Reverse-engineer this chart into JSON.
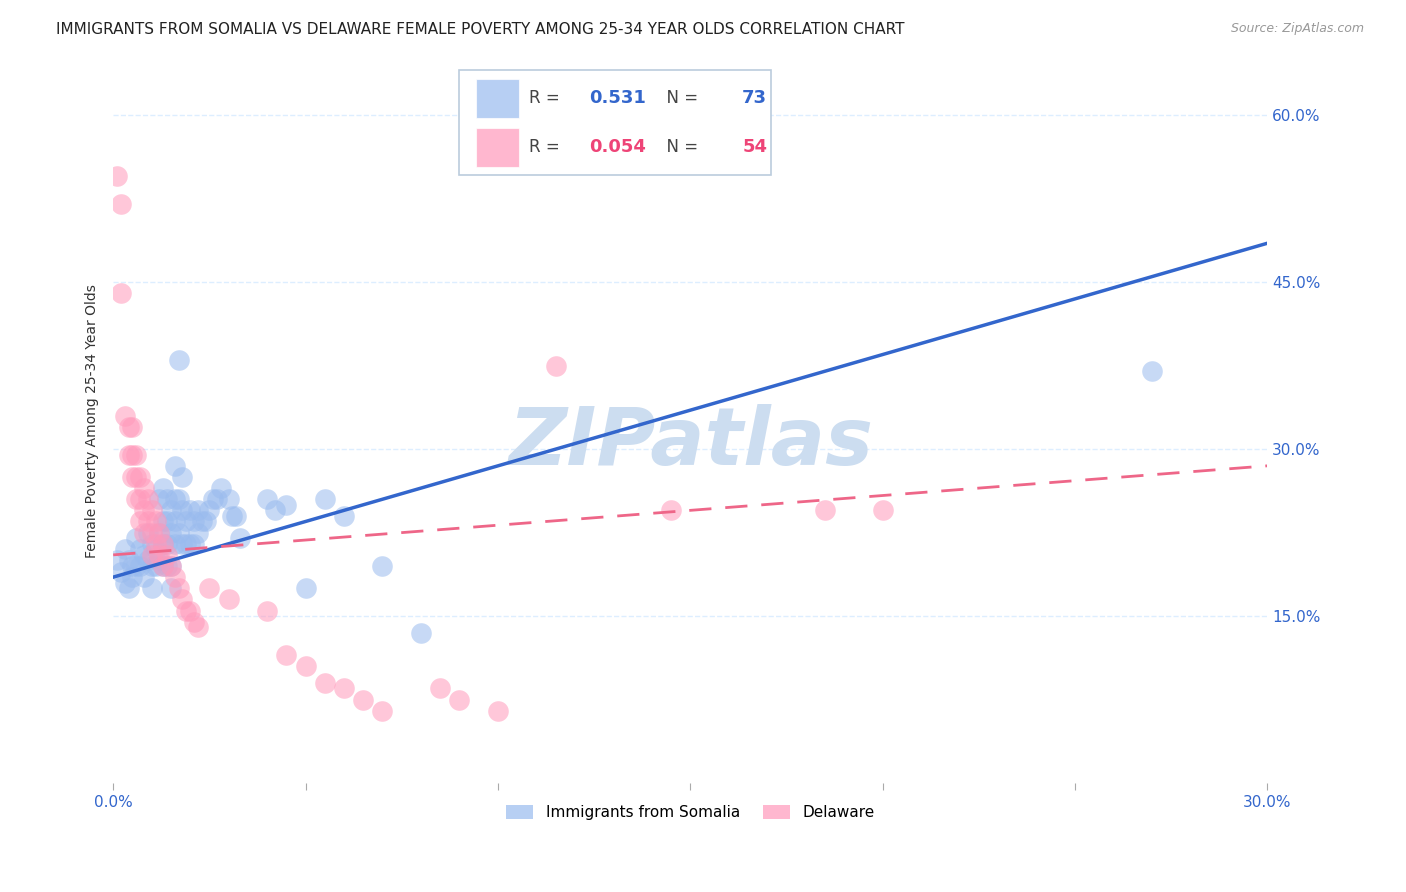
{
  "title": "IMMIGRANTS FROM SOMALIA VS DELAWARE FEMALE POVERTY AMONG 25-34 YEAR OLDS CORRELATION CHART",
  "source": "Source: ZipAtlas.com",
  "ylabel": "Female Poverty Among 25-34 Year Olds",
  "xlim": [
    0.0,
    0.3
  ],
  "ylim": [
    0.0,
    0.65
  ],
  "x_ticks": [
    0.0,
    0.05,
    0.1,
    0.15,
    0.2,
    0.25,
    0.3
  ],
  "y_ticks_right": [
    0.15,
    0.3,
    0.45,
    0.6
  ],
  "y_tick_labels_right": [
    "15.0%",
    "30.0%",
    "45.0%",
    "60.0%"
  ],
  "watermark": "ZIPatlas",
  "blue_color": "#99BBEE",
  "pink_color": "#FF99BB",
  "line_blue_color": "#3366CC",
  "line_pink_color": "#EE6688",
  "blue_scatter": [
    [
      0.001,
      0.2
    ],
    [
      0.002,
      0.19
    ],
    [
      0.003,
      0.18
    ],
    [
      0.003,
      0.21
    ],
    [
      0.004,
      0.2
    ],
    [
      0.004,
      0.175
    ],
    [
      0.005,
      0.195
    ],
    [
      0.005,
      0.185
    ],
    [
      0.006,
      0.22
    ],
    [
      0.006,
      0.195
    ],
    [
      0.007,
      0.21
    ],
    [
      0.007,
      0.195
    ],
    [
      0.008,
      0.205
    ],
    [
      0.008,
      0.185
    ],
    [
      0.009,
      0.225
    ],
    [
      0.009,
      0.2
    ],
    [
      0.01,
      0.215
    ],
    [
      0.01,
      0.195
    ],
    [
      0.01,
      0.175
    ],
    [
      0.011,
      0.21
    ],
    [
      0.011,
      0.195
    ],
    [
      0.012,
      0.255
    ],
    [
      0.012,
      0.225
    ],
    [
      0.012,
      0.2
    ],
    [
      0.013,
      0.265
    ],
    [
      0.013,
      0.235
    ],
    [
      0.013,
      0.215
    ],
    [
      0.013,
      0.195
    ],
    [
      0.014,
      0.255
    ],
    [
      0.014,
      0.235
    ],
    [
      0.014,
      0.215
    ],
    [
      0.014,
      0.195
    ],
    [
      0.015,
      0.245
    ],
    [
      0.015,
      0.225
    ],
    [
      0.015,
      0.195
    ],
    [
      0.015,
      0.175
    ],
    [
      0.016,
      0.285
    ],
    [
      0.016,
      0.255
    ],
    [
      0.016,
      0.235
    ],
    [
      0.016,
      0.215
    ],
    [
      0.017,
      0.38
    ],
    [
      0.017,
      0.255
    ],
    [
      0.017,
      0.225
    ],
    [
      0.018,
      0.275
    ],
    [
      0.018,
      0.245
    ],
    [
      0.018,
      0.215
    ],
    [
      0.019,
      0.235
    ],
    [
      0.019,
      0.215
    ],
    [
      0.02,
      0.245
    ],
    [
      0.02,
      0.215
    ],
    [
      0.021,
      0.235
    ],
    [
      0.021,
      0.215
    ],
    [
      0.022,
      0.245
    ],
    [
      0.022,
      0.225
    ],
    [
      0.023,
      0.235
    ],
    [
      0.024,
      0.235
    ],
    [
      0.025,
      0.245
    ],
    [
      0.026,
      0.255
    ],
    [
      0.027,
      0.255
    ],
    [
      0.028,
      0.265
    ],
    [
      0.03,
      0.255
    ],
    [
      0.031,
      0.24
    ],
    [
      0.032,
      0.24
    ],
    [
      0.033,
      0.22
    ],
    [
      0.04,
      0.255
    ],
    [
      0.042,
      0.245
    ],
    [
      0.045,
      0.25
    ],
    [
      0.05,
      0.175
    ],
    [
      0.055,
      0.255
    ],
    [
      0.06,
      0.24
    ],
    [
      0.07,
      0.195
    ],
    [
      0.08,
      0.135
    ],
    [
      0.27,
      0.37
    ]
  ],
  "pink_scatter": [
    [
      0.001,
      0.545
    ],
    [
      0.002,
      0.52
    ],
    [
      0.002,
      0.44
    ],
    [
      0.003,
      0.33
    ],
    [
      0.004,
      0.32
    ],
    [
      0.004,
      0.295
    ],
    [
      0.005,
      0.32
    ],
    [
      0.005,
      0.295
    ],
    [
      0.005,
      0.275
    ],
    [
      0.006,
      0.295
    ],
    [
      0.006,
      0.275
    ],
    [
      0.006,
      0.255
    ],
    [
      0.007,
      0.275
    ],
    [
      0.007,
      0.255
    ],
    [
      0.007,
      0.235
    ],
    [
      0.008,
      0.265
    ],
    [
      0.008,
      0.245
    ],
    [
      0.008,
      0.225
    ],
    [
      0.009,
      0.255
    ],
    [
      0.009,
      0.235
    ],
    [
      0.01,
      0.245
    ],
    [
      0.01,
      0.225
    ],
    [
      0.01,
      0.205
    ],
    [
      0.011,
      0.235
    ],
    [
      0.011,
      0.215
    ],
    [
      0.012,
      0.225
    ],
    [
      0.012,
      0.205
    ],
    [
      0.013,
      0.215
    ],
    [
      0.013,
      0.195
    ],
    [
      0.014,
      0.205
    ],
    [
      0.015,
      0.195
    ],
    [
      0.016,
      0.185
    ],
    [
      0.017,
      0.175
    ],
    [
      0.018,
      0.165
    ],
    [
      0.019,
      0.155
    ],
    [
      0.02,
      0.155
    ],
    [
      0.021,
      0.145
    ],
    [
      0.022,
      0.14
    ],
    [
      0.025,
      0.175
    ],
    [
      0.03,
      0.165
    ],
    [
      0.04,
      0.155
    ],
    [
      0.045,
      0.115
    ],
    [
      0.05,
      0.105
    ],
    [
      0.055,
      0.09
    ],
    [
      0.06,
      0.085
    ],
    [
      0.065,
      0.075
    ],
    [
      0.07,
      0.065
    ],
    [
      0.085,
      0.085
    ],
    [
      0.09,
      0.075
    ],
    [
      0.1,
      0.065
    ],
    [
      0.115,
      0.375
    ],
    [
      0.145,
      0.245
    ],
    [
      0.185,
      0.245
    ],
    [
      0.2,
      0.245
    ]
  ],
  "blue_line_x": [
    0.0,
    0.3
  ],
  "blue_line_y": [
    0.185,
    0.485
  ],
  "pink_line_x": [
    0.0,
    0.3
  ],
  "pink_line_y": [
    0.205,
    0.285
  ],
  "title_fontsize": 11,
  "tick_fontsize": 11,
  "watermark_color": "#CCDDF0",
  "bg_color": "#FFFFFF",
  "grid_color": "#DDEEFF",
  "legend_r1_val": "0.531",
  "legend_n1_val": "73",
  "legend_r2_val": "0.054",
  "legend_n2_val": "54",
  "legend_num_color_blue": "#3366CC",
  "legend_num_color_pink": "#EE4477",
  "legend_text_color": "#444444"
}
